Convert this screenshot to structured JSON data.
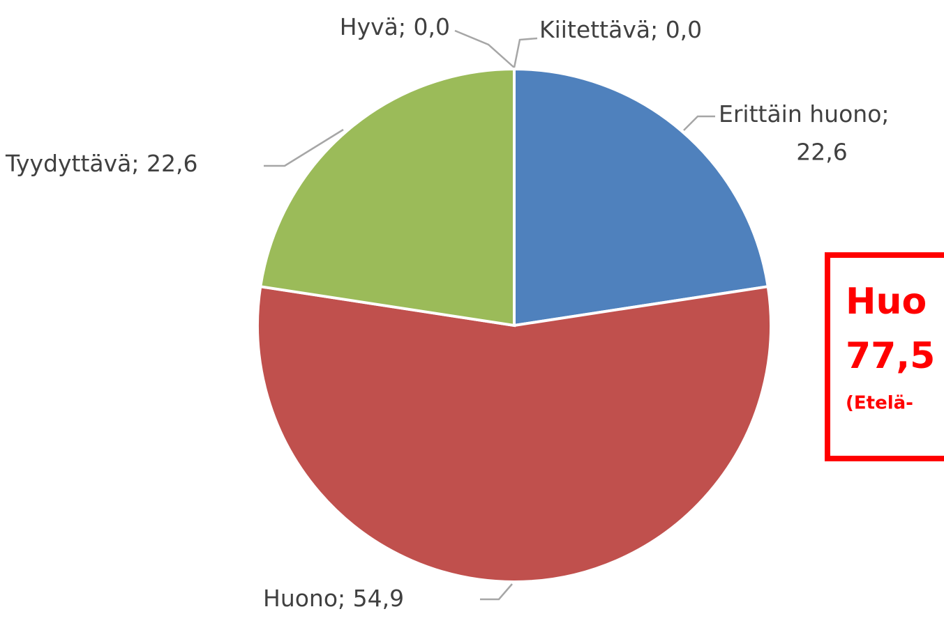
{
  "chart_data": {
    "type": "pie",
    "categories": [
      "Erittäin huono",
      "Huono",
      "Tyydyttävä",
      "Hyvä",
      "Kiitettävä"
    ],
    "values": [
      22.6,
      54.9,
      22.6,
      0.0,
      0.0
    ],
    "value_labels": [
      "22,6",
      "54,9",
      "22,6",
      "0,0",
      "0,0"
    ],
    "label_separator": "; ",
    "colors": [
      "#4f81bd",
      "#c0504d",
      "#9bbb59",
      "#8064a2",
      "#4bacc6"
    ],
    "annotation": [
      "Huo",
      "77,5",
      "(Etelä-"
    ]
  }
}
